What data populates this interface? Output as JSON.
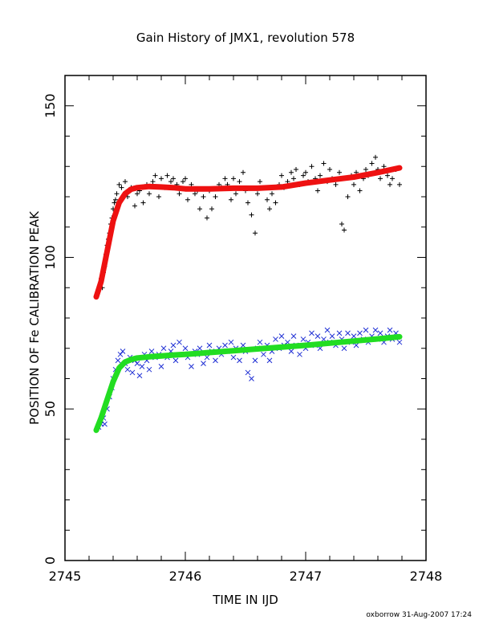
{
  "chart_data": {
    "type": "scatter",
    "title": "Gain History of JMX1, revolution 578",
    "xlabel": "TIME IN IJD",
    "ylabel": "POSITION OF Fe CALIBRATION PEAK",
    "xlim": [
      2745,
      2748
    ],
    "ylim": [
      0,
      160
    ],
    "xticks": [
      2745,
      2746,
      2747,
      2748
    ],
    "xtick_labels": [
      "2745",
      "2746",
      "2747",
      "2748"
    ],
    "yticks": [
      0,
      50,
      100,
      150
    ],
    "ytick_labels": [
      "0",
      "50",
      "100",
      "150"
    ],
    "grid": false,
    "series": [
      {
        "kind": "points",
        "marker": "plus",
        "color": "#000000",
        "points": [
          [
            2745.27,
            88
          ],
          [
            2745.29,
            91
          ],
          [
            2745.3,
            93
          ],
          [
            2745.31,
            90
          ],
          [
            2745.32,
            95
          ],
          [
            2745.33,
            97
          ],
          [
            2745.34,
            101
          ],
          [
            2745.35,
            104
          ],
          [
            2745.36,
            106
          ],
          [
            2745.37,
            108
          ],
          [
            2745.38,
            111
          ],
          [
            2745.39,
            113
          ],
          [
            2745.4,
            116
          ],
          [
            2745.41,
            118
          ],
          [
            2745.42,
            119
          ],
          [
            2745.43,
            121
          ],
          [
            2745.45,
            124
          ],
          [
            2745.47,
            123
          ],
          [
            2745.5,
            125
          ],
          [
            2745.52,
            120
          ],
          [
            2745.55,
            123
          ],
          [
            2745.58,
            117
          ],
          [
            2745.6,
            121
          ],
          [
            2745.62,
            122
          ],
          [
            2745.65,
            118
          ],
          [
            2745.68,
            124
          ],
          [
            2745.7,
            121
          ],
          [
            2745.73,
            125
          ],
          [
            2745.75,
            127
          ],
          [
            2745.78,
            120
          ],
          [
            2745.8,
            126
          ],
          [
            2745.83,
            123
          ],
          [
            2745.85,
            127
          ],
          [
            2745.88,
            125
          ],
          [
            2745.9,
            126
          ],
          [
            2745.93,
            124
          ],
          [
            2745.95,
            121
          ],
          [
            2745.98,
            125
          ],
          [
            2746.0,
            126
          ],
          [
            2746.02,
            119
          ],
          [
            2746.05,
            124
          ],
          [
            2746.08,
            121
          ],
          [
            2746.1,
            122
          ],
          [
            2746.12,
            116
          ],
          [
            2746.15,
            120
          ],
          [
            2746.18,
            113
          ],
          [
            2746.2,
            122
          ],
          [
            2746.22,
            116
          ],
          [
            2746.25,
            120
          ],
          [
            2746.28,
            124
          ],
          [
            2746.3,
            123
          ],
          [
            2746.33,
            126
          ],
          [
            2746.35,
            124
          ],
          [
            2746.38,
            119
          ],
          [
            2746.4,
            126
          ],
          [
            2746.42,
            121
          ],
          [
            2746.45,
            125
          ],
          [
            2746.48,
            128
          ],
          [
            2746.5,
            122
          ],
          [
            2746.52,
            118
          ],
          [
            2746.55,
            114
          ],
          [
            2746.58,
            108
          ],
          [
            2746.6,
            121
          ],
          [
            2746.62,
            125
          ],
          [
            2746.65,
            123
          ],
          [
            2746.68,
            119
          ],
          [
            2746.7,
            116
          ],
          [
            2746.72,
            121
          ],
          [
            2746.75,
            118
          ],
          [
            2746.78,
            124
          ],
          [
            2746.8,
            127
          ],
          [
            2746.82,
            123
          ],
          [
            2746.85,
            125
          ],
          [
            2746.88,
            128
          ],
          [
            2746.9,
            126
          ],
          [
            2746.92,
            129
          ],
          [
            2746.95,
            124
          ],
          [
            2746.98,
            127
          ],
          [
            2747.0,
            128
          ],
          [
            2747.02,
            125
          ],
          [
            2747.05,
            130
          ],
          [
            2747.08,
            126
          ],
          [
            2747.1,
            122
          ],
          [
            2747.12,
            127
          ],
          [
            2747.15,
            131
          ],
          [
            2747.18,
            125
          ],
          [
            2747.2,
            129
          ],
          [
            2747.22,
            126
          ],
          [
            2747.25,
            124
          ],
          [
            2747.28,
            128
          ],
          [
            2747.3,
            111
          ],
          [
            2747.32,
            109
          ],
          [
            2747.35,
            120
          ],
          [
            2747.38,
            127
          ],
          [
            2747.4,
            124
          ],
          [
            2747.42,
            128
          ],
          [
            2747.45,
            122
          ],
          [
            2747.48,
            126
          ],
          [
            2747.5,
            129
          ],
          [
            2747.52,
            127
          ],
          [
            2747.55,
            131
          ],
          [
            2747.58,
            133
          ],
          [
            2747.6,
            129
          ],
          [
            2747.62,
            126
          ],
          [
            2747.65,
            130
          ],
          [
            2747.68,
            127
          ],
          [
            2747.7,
            124
          ],
          [
            2747.72,
            126
          ],
          [
            2747.75,
            129
          ],
          [
            2747.78,
            124
          ]
        ]
      },
      {
        "kind": "points",
        "marker": "cross",
        "color": "#1f2fd4",
        "points": [
          [
            2745.28,
            44
          ],
          [
            2745.3,
            45
          ],
          [
            2745.32,
            47
          ],
          [
            2745.33,
            45
          ],
          [
            2745.35,
            50
          ],
          [
            2745.37,
            54
          ],
          [
            2745.39,
            57
          ],
          [
            2745.4,
            60
          ],
          [
            2745.42,
            63
          ],
          [
            2745.44,
            66
          ],
          [
            2745.46,
            68
          ],
          [
            2745.48,
            69
          ],
          [
            2745.5,
            65
          ],
          [
            2745.52,
            63
          ],
          [
            2745.54,
            67
          ],
          [
            2745.56,
            62
          ],
          [
            2745.58,
            66
          ],
          [
            2745.6,
            65
          ],
          [
            2745.62,
            61
          ],
          [
            2745.64,
            64
          ],
          [
            2745.66,
            68
          ],
          [
            2745.68,
            66
          ],
          [
            2745.7,
            63
          ],
          [
            2745.72,
            69
          ],
          [
            2745.75,
            67
          ],
          [
            2745.78,
            68
          ],
          [
            2745.8,
            64
          ],
          [
            2745.82,
            70
          ],
          [
            2745.85,
            67
          ],
          [
            2745.88,
            69
          ],
          [
            2745.9,
            71
          ],
          [
            2745.92,
            66
          ],
          [
            2745.95,
            72
          ],
          [
            2745.98,
            68
          ],
          [
            2746.0,
            70
          ],
          [
            2746.02,
            67
          ],
          [
            2746.05,
            64
          ],
          [
            2746.08,
            69
          ],
          [
            2746.1,
            68
          ],
          [
            2746.12,
            70
          ],
          [
            2746.15,
            65
          ],
          [
            2746.18,
            67
          ],
          [
            2746.2,
            71
          ],
          [
            2746.22,
            69
          ],
          [
            2746.25,
            66
          ],
          [
            2746.28,
            70
          ],
          [
            2746.3,
            68
          ],
          [
            2746.33,
            71
          ],
          [
            2746.35,
            69
          ],
          [
            2746.38,
            72
          ],
          [
            2746.4,
            67
          ],
          [
            2746.42,
            70
          ],
          [
            2746.45,
            66
          ],
          [
            2746.48,
            71
          ],
          [
            2746.5,
            69
          ],
          [
            2746.52,
            62
          ],
          [
            2746.55,
            60
          ],
          [
            2746.58,
            66
          ],
          [
            2746.6,
            70
          ],
          [
            2746.62,
            72
          ],
          [
            2746.65,
            68
          ],
          [
            2746.68,
            71
          ],
          [
            2746.7,
            66
          ],
          [
            2746.72,
            69
          ],
          [
            2746.75,
            73
          ],
          [
            2746.78,
            70
          ],
          [
            2746.8,
            74
          ],
          [
            2746.82,
            71
          ],
          [
            2746.85,
            72
          ],
          [
            2746.88,
            69
          ],
          [
            2746.9,
            74
          ],
          [
            2746.92,
            71
          ],
          [
            2746.95,
            68
          ],
          [
            2746.98,
            73
          ],
          [
            2747.0,
            70
          ],
          [
            2747.02,
            72
          ],
          [
            2747.05,
            75
          ],
          [
            2747.08,
            71
          ],
          [
            2747.1,
            74
          ],
          [
            2747.12,
            70
          ],
          [
            2747.15,
            73
          ],
          [
            2747.18,
            76
          ],
          [
            2747.2,
            72
          ],
          [
            2747.22,
            74
          ],
          [
            2747.25,
            71
          ],
          [
            2747.28,
            75
          ],
          [
            2747.3,
            73
          ],
          [
            2747.32,
            70
          ],
          [
            2747.35,
            75
          ],
          [
            2747.38,
            72
          ],
          [
            2747.4,
            74
          ],
          [
            2747.42,
            71
          ],
          [
            2747.45,
            75
          ],
          [
            2747.48,
            73
          ],
          [
            2747.5,
            76
          ],
          [
            2747.52,
            72
          ],
          [
            2747.55,
            74
          ],
          [
            2747.58,
            76
          ],
          [
            2747.6,
            73
          ],
          [
            2747.62,
            75
          ],
          [
            2747.65,
            72
          ],
          [
            2747.68,
            74
          ],
          [
            2747.7,
            76
          ],
          [
            2747.72,
            73
          ],
          [
            2747.75,
            75
          ],
          [
            2747.78,
            72
          ]
        ]
      },
      {
        "kind": "fit",
        "color": "#ee1111",
        "points": [
          [
            2745.26,
            87
          ],
          [
            2745.3,
            92
          ],
          [
            2745.35,
            102
          ],
          [
            2745.4,
            112
          ],
          [
            2745.45,
            118
          ],
          [
            2745.5,
            121
          ],
          [
            2745.55,
            122.5
          ],
          [
            2745.6,
            123
          ],
          [
            2745.7,
            123.4
          ],
          [
            2745.8,
            123.2
          ],
          [
            2745.9,
            123
          ],
          [
            2746.0,
            122.6
          ],
          [
            2746.2,
            122.6
          ],
          [
            2746.4,
            122.8
          ],
          [
            2746.6,
            122.8
          ],
          [
            2746.8,
            123.2
          ],
          [
            2747.0,
            124.5
          ],
          [
            2747.2,
            125.5
          ],
          [
            2747.4,
            126.5
          ],
          [
            2747.6,
            128
          ],
          [
            2747.78,
            129.5
          ]
        ]
      },
      {
        "kind": "fit",
        "color": "#22dd22",
        "points": [
          [
            2745.26,
            43
          ],
          [
            2745.3,
            47
          ],
          [
            2745.35,
            53
          ],
          [
            2745.4,
            59
          ],
          [
            2745.45,
            63.5
          ],
          [
            2745.5,
            65.5
          ],
          [
            2745.55,
            66.3
          ],
          [
            2745.6,
            66.8
          ],
          [
            2745.7,
            67.2
          ],
          [
            2745.8,
            67.5
          ],
          [
            2745.9,
            67.8
          ],
          [
            2746.0,
            68
          ],
          [
            2746.2,
            68.6
          ],
          [
            2746.4,
            69.2
          ],
          [
            2746.6,
            69.8
          ],
          [
            2746.8,
            70.4
          ],
          [
            2747.0,
            71
          ],
          [
            2747.2,
            71.7
          ],
          [
            2747.4,
            72.4
          ],
          [
            2747.6,
            73.1
          ],
          [
            2747.78,
            73.8
          ]
        ]
      }
    ]
  },
  "footer": "oxborrow 31-Aug-2007 17:24"
}
